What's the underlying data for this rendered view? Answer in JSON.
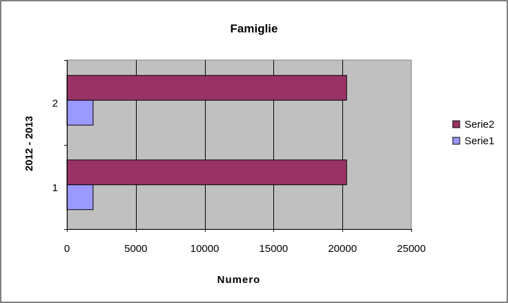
{
  "chart_data": {
    "type": "bar",
    "orientation": "horizontal",
    "title": "Famiglie",
    "xlabel": "Numero",
    "ylabel": "2012 - 2013",
    "categories": [
      "1",
      "2"
    ],
    "series": [
      {
        "name": "Serie1",
        "values": [
          1900,
          1900
        ],
        "color": "#9999ff"
      },
      {
        "name": "Serie2",
        "values": [
          20300,
          20300
        ],
        "color": "#993366"
      }
    ],
    "xlim": [
      0,
      25000
    ],
    "xticks": [
      0,
      5000,
      10000,
      15000,
      20000,
      25000
    ],
    "grid": true,
    "plot_background": "#c0c0c0",
    "legend_position": "right",
    "legend_order": [
      "Serie2",
      "Serie1"
    ]
  }
}
